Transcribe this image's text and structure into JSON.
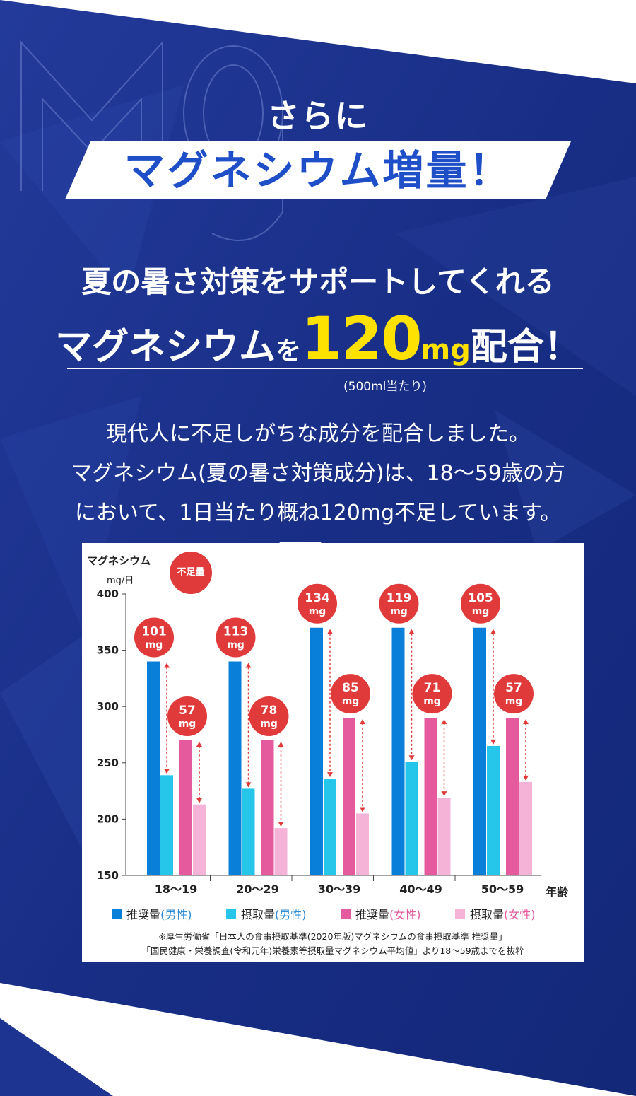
{
  "header": {
    "kicker": "さらに",
    "banner": "マグネシウム増量！"
  },
  "headline": {
    "line1": "夏の暑さ対策をサポートしてくれる",
    "line2_pre": "マグネシウム",
    "line2_particle": "を",
    "line2_amount": "120",
    "line2_unit": "mg",
    "line2_post": "配合！",
    "note": "(500ml当たり)"
  },
  "body": {
    "line1": "現代人に不足しがちな成分を配合しました。",
    "line2": "マグネシウム(夏の暑さ対策成分)は、18～59歳の方",
    "line3": "において、1日当たり概ね120mg不足しています。"
  },
  "colors": {
    "bg_dark": "#1a2f88",
    "accent_blue": "#1e4fc8",
    "accent_yellow": "#ffe100",
    "badge_red": "#e03a3a",
    "male_rec": "#0a7fd9",
    "male_int": "#26c6ea",
    "female_rec": "#e55a9c",
    "female_int": "#f6b3d8"
  },
  "chart_data": {
    "type": "bar",
    "ylabel": "マグネシウム",
    "yunit": "mg/日",
    "xlabel": "年齢",
    "shortage_label": "不足量",
    "ylim": [
      150,
      400
    ],
    "yticks": [
      150,
      200,
      250,
      300,
      350,
      400
    ],
    "categories": [
      "18～19",
      "20～29",
      "30～39",
      "40～49",
      "50～59"
    ],
    "series": [
      {
        "name": "推奨量",
        "group": "(男性)",
        "values": [
          340,
          340,
          370,
          370,
          370
        ]
      },
      {
        "name": "摂取量",
        "group": "(男性)",
        "values": [
          239,
          227,
          236,
          251,
          265
        ]
      },
      {
        "name": "推奨量",
        "group": "(女性)",
        "values": [
          270,
          270,
          290,
          290,
          290
        ]
      },
      {
        "name": "摂取量",
        "group": "(女性)",
        "values": [
          213,
          192,
          205,
          219,
          233
        ]
      }
    ],
    "shortage_male": [
      "101",
      "113",
      "134",
      "119",
      "105"
    ],
    "shortage_female": [
      "57",
      "78",
      "85",
      "71",
      "57"
    ],
    "shortage_unit": "mg",
    "legend_position": "bottom",
    "footnote1": "※厚生労働省「日本人の食事摂取基準(2020年版)マグネシウムの食事摂取基準 推奨量」",
    "footnote2": "「国民健康・栄養調査(令和元年)栄養素等摂取量マグネシウム平均値」より18～59歳までを抜粋"
  }
}
